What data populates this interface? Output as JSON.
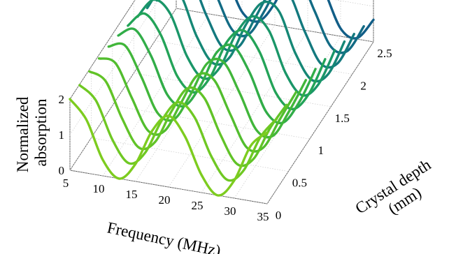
{
  "chart_data": {
    "type": "line",
    "subtype": "3d-waterfall",
    "title": "",
    "xlabel": "Frequency (MHz)",
    "ylabel": "Crystal depth\n(mm)",
    "zlabel": "Normalized\nabsorption",
    "xlim": [
      5,
      35
    ],
    "ylim": [
      0,
      2.5
    ],
    "zlim": [
      0,
      2
    ],
    "xticks": [
      "5",
      "10",
      "15",
      "20",
      "25",
      "30",
      "35"
    ],
    "yticks": [
      "0",
      "0.5",
      "1",
      "1.5",
      "2",
      "2.5"
    ],
    "zticks": [
      "0",
      "1",
      "2"
    ],
    "grid": true,
    "colors": [
      "#7dcc1f",
      "#6fc823",
      "#61c327",
      "#52bd2e",
      "#41b63a",
      "#31ad48",
      "#23a358",
      "#1a9668",
      "#158775",
      "#13797e",
      "#126b84",
      "#125e87"
    ],
    "series": [
      {
        "depth": 0.0,
        "x": [
          5,
          7.5,
          10,
          12.5,
          15,
          17.5,
          20,
          22.5,
          25,
          27.5,
          30,
          32.5,
          35
        ],
        "values": [
          2.0,
          1.5,
          0.45,
          0.0,
          0.5,
          1.5,
          2.0,
          1.5,
          0.5,
          0.0,
          0.5,
          1.55,
          2.0
        ]
      },
      {
        "depth": 0.227,
        "x": [
          5,
          7.5,
          10,
          12.5,
          15,
          17.5,
          20,
          22.5,
          25,
          27.5,
          30,
          32.5,
          35
        ],
        "values": [
          1.98,
          1.62,
          0.6,
          0.02,
          0.4,
          1.38,
          1.97,
          1.62,
          0.62,
          0.02,
          0.38,
          1.38,
          1.98
        ]
      },
      {
        "depth": 0.455,
        "x": [
          5,
          7.5,
          10,
          12.5,
          15,
          17.5,
          20,
          22.5,
          25,
          27.5,
          30,
          32.5,
          35
        ],
        "values": [
          1.95,
          1.75,
          0.78,
          0.05,
          0.28,
          1.22,
          1.95,
          1.75,
          0.78,
          0.05,
          0.28,
          1.22,
          1.95
        ]
      },
      {
        "depth": 0.682,
        "x": [
          5,
          7.5,
          10,
          12.5,
          15,
          17.5,
          20,
          22.5,
          25,
          27.5,
          30,
          32.5,
          35
        ],
        "values": [
          1.9,
          1.85,
          0.95,
          0.1,
          0.18,
          1.05,
          1.9,
          1.85,
          0.95,
          0.1,
          0.18,
          1.05,
          1.9
        ]
      },
      {
        "depth": 0.909,
        "x": [
          5,
          7.5,
          10,
          12.5,
          15,
          17.5,
          20,
          22.5,
          25,
          27.5,
          30,
          32.5,
          35
        ],
        "values": [
          1.82,
          1.93,
          1.12,
          0.18,
          0.1,
          0.88,
          1.82,
          1.93,
          1.12,
          0.18,
          0.1,
          0.88,
          1.82
        ]
      },
      {
        "depth": 1.136,
        "x": [
          5,
          7.5,
          10,
          12.5,
          15,
          17.5,
          20,
          22.5,
          25,
          27.5,
          30,
          32.5,
          35
        ],
        "values": [
          1.72,
          1.97,
          1.3,
          0.28,
          0.05,
          0.7,
          1.72,
          1.97,
          1.3,
          0.28,
          0.05,
          0.7,
          1.72
        ]
      },
      {
        "depth": 1.364,
        "x": [
          5,
          7.5,
          10,
          12.5,
          15,
          17.5,
          20,
          22.5,
          25,
          27.5,
          30,
          32.5,
          35
        ],
        "values": [
          1.58,
          2.0,
          1.48,
          0.4,
          0.02,
          0.52,
          1.58,
          2.0,
          1.48,
          0.4,
          0.02,
          0.52,
          1.58
        ]
      },
      {
        "depth": 1.591,
        "x": [
          5,
          7.5,
          10,
          12.5,
          15,
          17.5,
          20,
          22.5,
          25,
          27.5,
          30,
          32.5,
          35
        ],
        "values": [
          1.42,
          1.98,
          1.65,
          0.55,
          0.0,
          0.38,
          1.42,
          1.98,
          1.65,
          0.55,
          0.0,
          0.38,
          1.42
        ]
      },
      {
        "depth": 1.818,
        "x": [
          5,
          7.5,
          10,
          12.5,
          15,
          17.5,
          20,
          22.5,
          25,
          27.5,
          30,
          32.5,
          35
        ],
        "values": [
          1.25,
          1.95,
          1.8,
          0.7,
          0.02,
          0.25,
          1.25,
          1.95,
          1.8,
          0.7,
          0.02,
          0.25,
          1.25
        ]
      },
      {
        "depth": 2.045,
        "x": [
          5,
          7.5,
          10,
          12.5,
          15,
          17.5,
          20,
          22.5,
          25,
          27.5,
          30,
          32.5,
          35
        ],
        "values": [
          1.05,
          1.88,
          1.9,
          0.88,
          0.05,
          0.15,
          1.05,
          1.88,
          1.9,
          0.88,
          0.05,
          0.15,
          1.05
        ]
      },
      {
        "depth": 2.273,
        "x": [
          5,
          7.5,
          10,
          12.5,
          15,
          17.5,
          20,
          22.5,
          25,
          27.5,
          30,
          32.5,
          35
        ],
        "values": [
          0.85,
          1.78,
          1.97,
          1.05,
          0.12,
          0.08,
          0.85,
          1.78,
          1.97,
          1.05,
          0.12,
          0.08,
          0.85
        ]
      },
      {
        "depth": 2.5,
        "x": [
          5,
          7.5,
          10,
          12.5,
          15,
          17.5,
          20,
          22.5,
          25,
          27.5,
          30,
          32.5,
          35
        ],
        "values": [
          0.62,
          1.65,
          2.0,
          1.22,
          0.22,
          0.03,
          0.62,
          1.65,
          2.0,
          1.22,
          0.22,
          0.03,
          0.62
        ]
      }
    ]
  }
}
